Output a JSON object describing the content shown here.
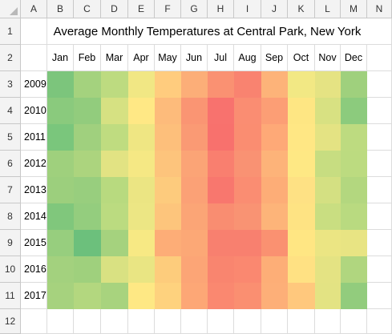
{
  "sheet": {
    "columns": [
      "A",
      "B",
      "C",
      "D",
      "E",
      "F",
      "G",
      "H",
      "I",
      "J",
      "K",
      "L",
      "M",
      "N"
    ],
    "rows": [
      "1",
      "2",
      "3",
      "4",
      "5",
      "6",
      "7",
      "8",
      "9",
      "10",
      "11",
      "12"
    ],
    "title": "Average Monthly Temperatures at Central Park, New York",
    "months": [
      "Jan",
      "Feb",
      "Mar",
      "Apr",
      "May",
      "Jun",
      "Jul",
      "Aug",
      "Sep",
      "Oct",
      "Nov",
      "Dec"
    ],
    "years": [
      "2009",
      "2010",
      "2011",
      "2012",
      "2013",
      "2014",
      "2015",
      "2016",
      "2017"
    ]
  },
  "colors": {
    "scale_low": "#63be7b",
    "scale_mid": "#ffeb84",
    "scale_high": "#f8696b"
  },
  "heatmap_colors": [
    [
      "#7cc57c",
      "#a4d27e",
      "#bddb80",
      "#f1e784",
      "#ffcc7e",
      "#fcae78",
      "#fa9172",
      "#f98370",
      "#fdb379",
      "#f2e884",
      "#e5e383",
      "#9fd07d"
    ],
    [
      "#8aca7d",
      "#92cc7d",
      "#d6e182",
      "#ffe885",
      "#fdbb7b",
      "#fa9573",
      "#f8726e",
      "#fa8d72",
      "#fc9e75",
      "#fee683",
      "#d8e182",
      "#8ccb7d"
    ],
    [
      "#7ac67c",
      "#a0d07e",
      "#bfdc80",
      "#efe683",
      "#fdbf7b",
      "#fa9a74",
      "#f8716d",
      "#fa8d71",
      "#fea977",
      "#ffe784",
      "#e4e383",
      "#bddb80"
    ],
    [
      "#9fd07d",
      "#acd47e",
      "#e2e383",
      "#f5e884",
      "#fdc47c",
      "#fba476",
      "#f97f6f",
      "#f99273",
      "#fdb379",
      "#fee884",
      "#c7dd81",
      "#bcdb80"
    ],
    [
      "#9ccf7d",
      "#98ce7e",
      "#b8da7f",
      "#ebe583",
      "#fdcb7d",
      "#fba176",
      "#f8776e",
      "#fa8d72",
      "#fdad77",
      "#fee184",
      "#d4e082",
      "#b3d77f"
    ],
    [
      "#80c77c",
      "#94cd7e",
      "#bbdb80",
      "#ece684",
      "#fdc57c",
      "#fba576",
      "#f98d71",
      "#f99373",
      "#fdb479",
      "#fee383",
      "#c9de81",
      "#b9da80"
    ],
    [
      "#97ce7e",
      "#6cc07c",
      "#a5d27e",
      "#f7e984",
      "#fdad77",
      "#fca876",
      "#f8806f",
      "#f8806f",
      "#fa9171",
      "#ffe683",
      "#ebe583",
      "#e8e483"
    ],
    [
      "#a3d17e",
      "#9fd07d",
      "#d9e182",
      "#e9e583",
      "#fdcc7c",
      "#fca576",
      "#f9856f",
      "#fa8870",
      "#fdae77",
      "#ffe183",
      "#e4e383",
      "#b0d67f"
    ],
    [
      "#a6d27e",
      "#b3d77f",
      "#a8d37e",
      "#fee884",
      "#fed27e",
      "#fda776",
      "#fa8870",
      "#fa8f71",
      "#fdaf78",
      "#ffc87d",
      "#e3e383",
      "#92cc7d"
    ]
  ]
}
